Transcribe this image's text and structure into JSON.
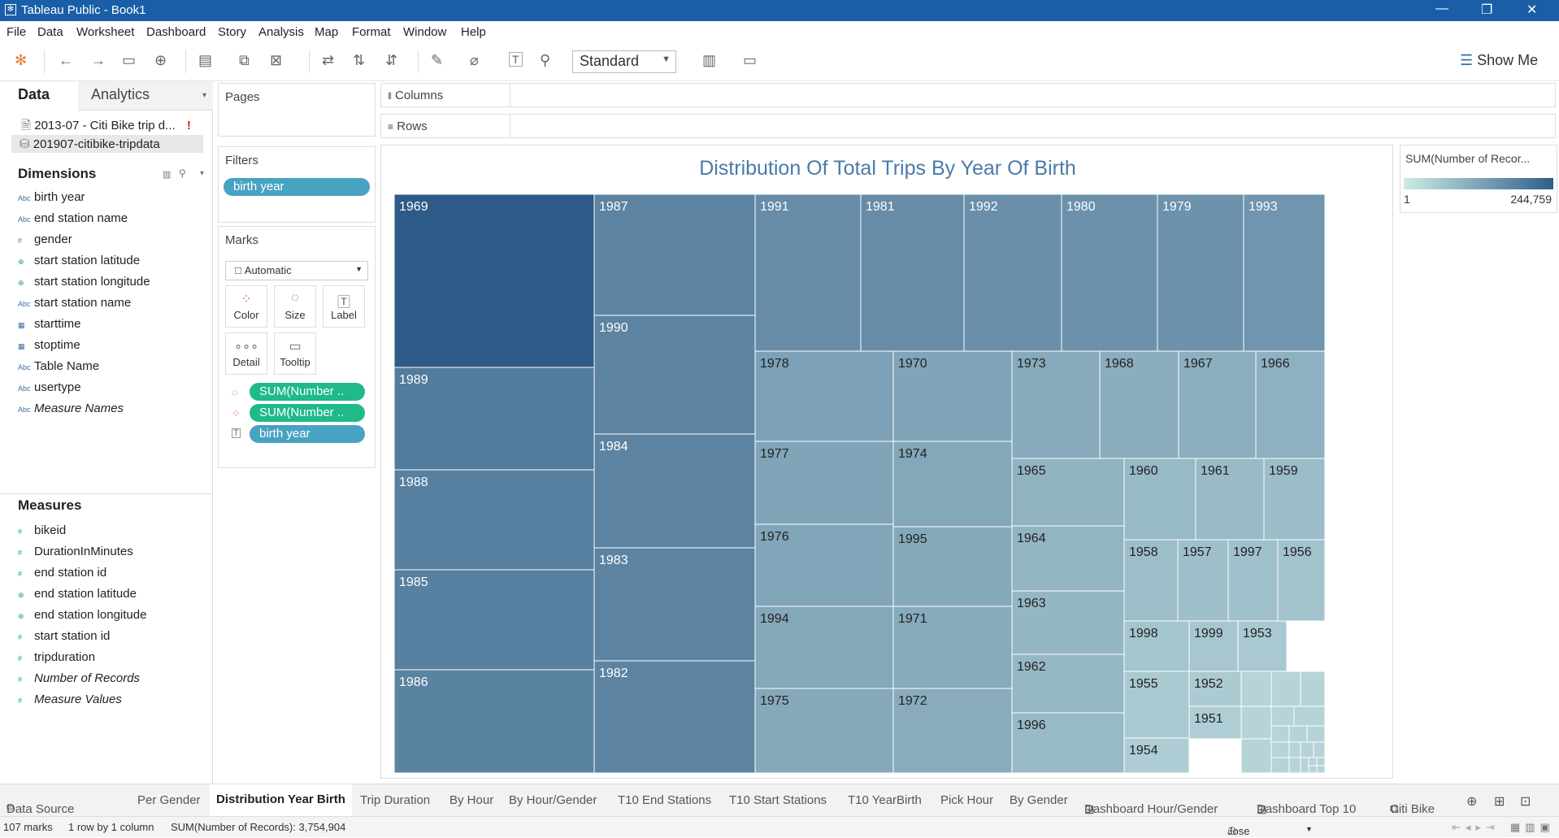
{
  "window": {
    "title": "Tableau Public - Book1"
  },
  "menu": [
    "File",
    "Data",
    "Worksheet",
    "Dashboard",
    "Story",
    "Analysis",
    "Map",
    "Format",
    "Window",
    "Help"
  ],
  "toolbar": {
    "fit_mode": "Standard",
    "show_me": "Show Me"
  },
  "left_pane": {
    "tabs": [
      "Data",
      "Analytics"
    ],
    "data_sources": [
      "2013-07 - Citi Bike trip d...",
      "201907-citibike-tripdata"
    ],
    "dimensions_header": "Dimensions",
    "dimensions": [
      {
        "icon": "Abc",
        "label": "birth year"
      },
      {
        "icon": "Abc",
        "label": "end station name"
      },
      {
        "icon": "#",
        "label": "gender"
      },
      {
        "icon": "⊕",
        "label": "start station latitude"
      },
      {
        "icon": "⊕",
        "label": "start station longitude"
      },
      {
        "icon": "Abc",
        "label": "start station name"
      },
      {
        "icon": "▦",
        "label": "starttime"
      },
      {
        "icon": "▦",
        "label": "stoptime"
      },
      {
        "icon": "Abc",
        "label": "Table Name"
      },
      {
        "icon": "Abc",
        "label": "usertype"
      },
      {
        "icon": "Abc",
        "label": "Measure Names"
      }
    ],
    "measures_header": "Measures",
    "measures": [
      {
        "icon": "#",
        "label": "bikeid"
      },
      {
        "icon": "#",
        "label": "DurationInMinutes"
      },
      {
        "icon": "#",
        "label": "end station id"
      },
      {
        "icon": "⊕",
        "label": "end station latitude"
      },
      {
        "icon": "⊕",
        "label": "end station longitude"
      },
      {
        "icon": "#",
        "label": "start station id"
      },
      {
        "icon": "#",
        "label": "tripduration"
      },
      {
        "icon": "#",
        "label": "Number of Records"
      },
      {
        "icon": "#",
        "label": "Measure Values"
      }
    ]
  },
  "shelves": {
    "pages": "Pages",
    "filters": "Filters",
    "filter_pill": "birth year",
    "marks": "Marks",
    "mark_type": "Automatic",
    "mark_buttons": [
      "Color",
      "Size",
      "Label",
      "Detail",
      "Tooltip"
    ],
    "mark_pills": [
      "SUM(Number ..",
      "SUM(Number ..",
      "birth year"
    ],
    "columns": "Columns",
    "rows": "Rows"
  },
  "legend": {
    "title": "SUM(Number of Recor...",
    "min": "1",
    "max": "244,759"
  },
  "chart_data": {
    "type": "treemap",
    "title": "Distribution Of Total Trips By Year Of Birth",
    "color_range": [
      "#d4eeea",
      "#2d5a86"
    ],
    "labels": [
      "1969",
      "1987",
      "1991",
      "1981",
      "1992",
      "1980",
      "1979",
      "1993",
      "1990",
      "1989",
      "1978",
      "1970",
      "1973",
      "1968",
      "1967",
      "1966",
      "1984",
      "1988",
      "1977",
      "1974",
      "1965",
      "1960",
      "1961",
      "1959",
      "1983",
      "1976",
      "1995",
      "1964",
      "1958",
      "1957",
      "1997",
      "1956",
      "1985",
      "1963",
      "1994",
      "1971",
      "1998",
      "1999",
      "1953",
      "1982",
      "1962",
      "1955",
      "1952",
      "1986",
      "1975",
      "1972",
      "1951",
      "1996",
      "1954"
    ]
  },
  "sheet_tabs": [
    "Data Source",
    "Per Gender",
    "Distribution Year Birth",
    "Trip Duration",
    "By Hour",
    "By Hour/Gender",
    "T10 End Stations",
    "T10 Start Stations",
    "T10 YearBirth",
    "Pick Hour",
    "By Gender",
    "Dashboard Hour/Gender",
    "Dashboard Top 10",
    "Citi Bike"
  ],
  "status": {
    "marks": "107 marks",
    "grid": "1 row by 1 column",
    "sum": "SUM(Number of Records): 3,754,904",
    "user": "Jose"
  }
}
